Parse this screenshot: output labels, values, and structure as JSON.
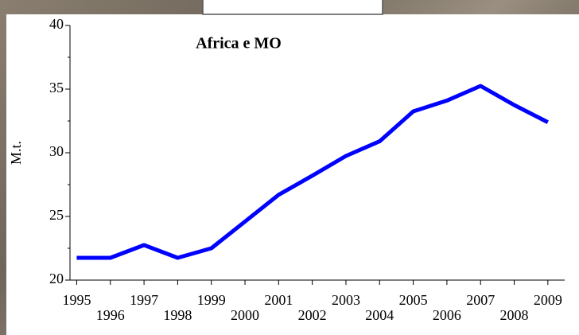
{
  "chart_data": {
    "type": "line",
    "title": "Africa e MO",
    "y_label": "M.t.",
    "x": [
      1995,
      1996,
      1997,
      1998,
      1999,
      2000,
      2001,
      2002,
      2003,
      2004,
      2005,
      2006,
      2007,
      2008,
      2009
    ],
    "series": [
      {
        "name": "Africa e MO",
        "color": "#0000ff",
        "values": [
          21.75,
          21.75,
          22.75,
          21.75,
          22.5,
          24.6,
          26.7,
          28.2,
          29.75,
          30.9,
          33.25,
          34.1,
          35.25,
          33.75,
          32.4
        ]
      }
    ],
    "xlim": [
      1994.8,
      2009.5
    ],
    "xticks": [
      1995,
      1996,
      1997,
      1998,
      1999,
      2000,
      2001,
      2002,
      2003,
      2004,
      2005,
      2006,
      2007,
      2008,
      2009
    ],
    "ylim": [
      20,
      40
    ],
    "yticks": [
      20,
      25,
      30,
      35,
      40
    ],
    "yminorticks": [
      22.5,
      27.5,
      32.5,
      37.5
    ],
    "grid": false
  }
}
